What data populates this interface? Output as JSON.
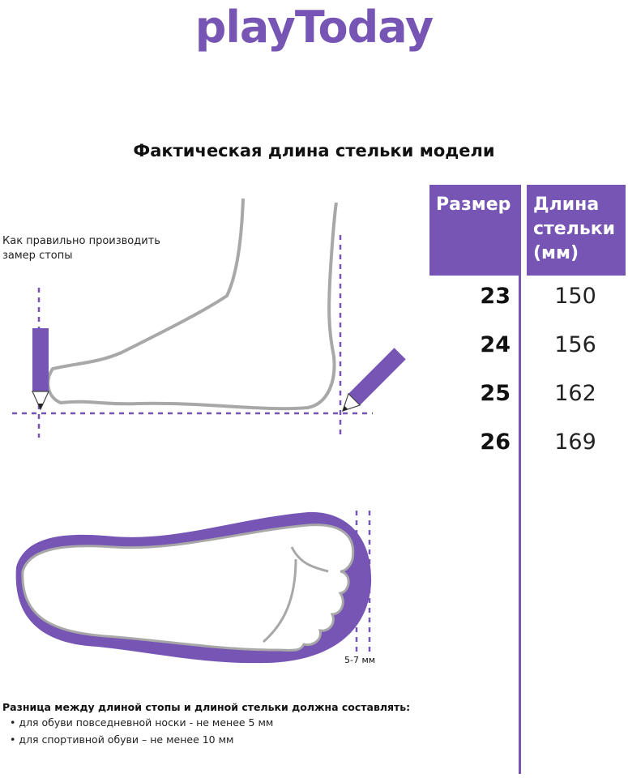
{
  "brand": {
    "logo": "playToday",
    "color": "#7655b5"
  },
  "title": "Фактическая длина стельки модели",
  "measure_hint": "Как правильно производить замер стопы",
  "table": {
    "headers": [
      "Размер",
      "Длина стельки (мм)"
    ],
    "rows": [
      {
        "size": "23",
        "length": "150"
      },
      {
        "size": "24",
        "length": "156"
      },
      {
        "size": "25",
        "length": "162"
      },
      {
        "size": "26",
        "length": "169"
      }
    ]
  },
  "gap_label": "5-7 мм",
  "note": {
    "heading": "Разница между длиной стопы и длиной стельки должна составлять:",
    "items": [
      "для обуви повседневной носки -  не менее 5 мм",
      "для спортивной обуви – не менее 10 мм"
    ]
  }
}
